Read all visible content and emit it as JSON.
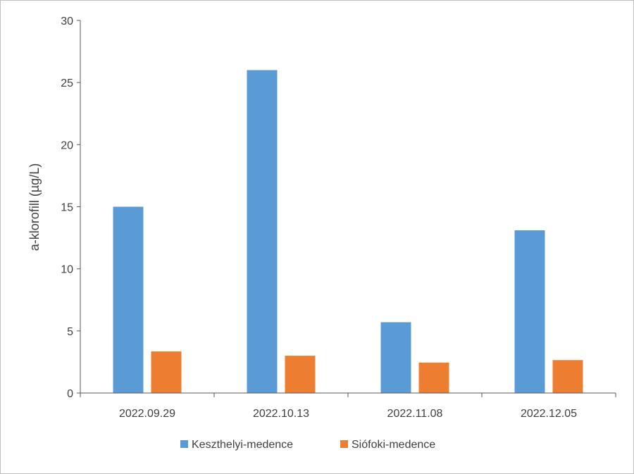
{
  "chart_data": {
    "type": "bar",
    "title": "",
    "xlabel": "",
    "ylabel": "a-klorofill (µg/L)",
    "ylim": [
      0,
      30
    ],
    "yticks": [
      0,
      5,
      10,
      15,
      20,
      25,
      30
    ],
    "categories": [
      "2022.09.29",
      "2022.10.13",
      "2022.11.08",
      "2022.12.05"
    ],
    "series": [
      {
        "name": "Keszthelyi-medence",
        "color": "#5b9bd5",
        "values": [
          15.0,
          26.0,
          5.7,
          13.1
        ]
      },
      {
        "name": "Siófoki-medence",
        "color": "#ed7d31",
        "values": [
          3.35,
          3.0,
          2.45,
          2.65
        ]
      }
    ],
    "legend_position": "bottom",
    "grid": false
  }
}
